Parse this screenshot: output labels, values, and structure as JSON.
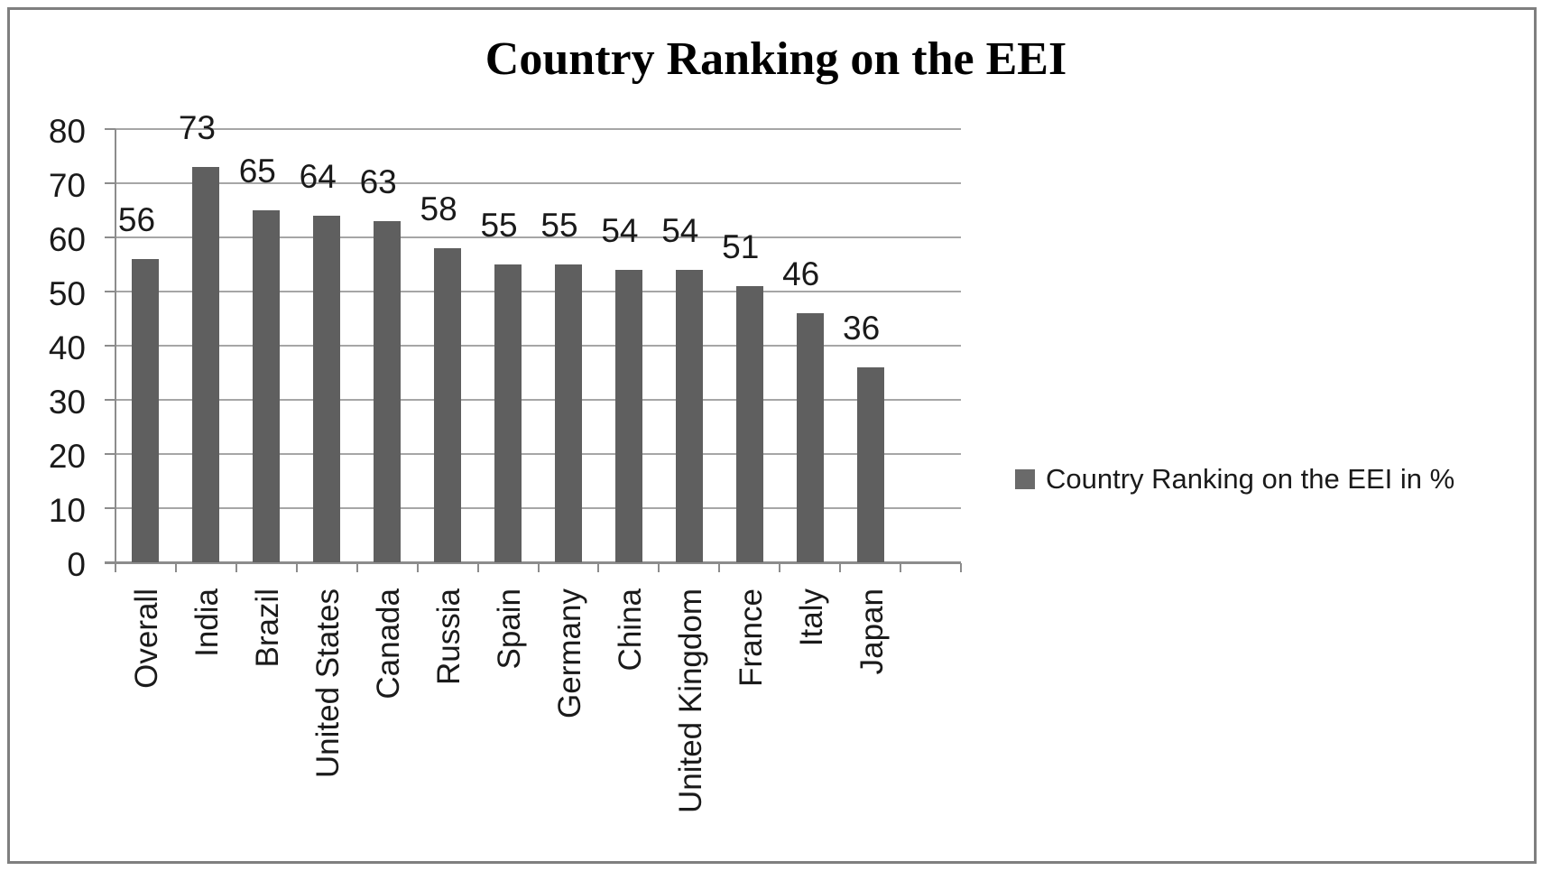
{
  "title": "Country Ranking on the EEI",
  "legend": {
    "label": "Country Ranking on the EEI in %",
    "swatch_color": "#6a6a6a",
    "position": "right"
  },
  "colors": {
    "bar": "#5f5f5f",
    "gridline": "#a6a6a6",
    "axis": "#8c8c8c",
    "text": "#1a1a1a",
    "frame_border": "#7f7f7f",
    "background": "#ffffff"
  },
  "chart_data": {
    "type": "bar",
    "title": "Country Ranking on the EEI",
    "categories": [
      "Overall",
      "India",
      "Brazil",
      "United States",
      "Canada",
      "Russia",
      "Spain",
      "Germany",
      "China",
      "United Kingdom",
      "France",
      "Italy",
      "Japan"
    ],
    "values": [
      56,
      73,
      65,
      64,
      63,
      58,
      55,
      55,
      54,
      54,
      51,
      46,
      36
    ],
    "series": [
      {
        "name": "Country Ranking on the EEI in %",
        "values": [
          56,
          73,
          65,
          64,
          63,
          58,
          55,
          55,
          54,
          54,
          51,
          46,
          36
        ]
      }
    ],
    "data_labels": [
      56,
      73,
      65,
      64,
      63,
      58,
      55,
      55,
      54,
      54,
      51,
      46,
      36
    ],
    "xlabel": "",
    "ylabel": "",
    "ylim": [
      0,
      80
    ],
    "yticks": [
      0,
      10,
      20,
      30,
      40,
      50,
      60,
      70,
      80
    ],
    "grid": true,
    "legend_position": "right",
    "category_label_rotation": -90
  }
}
